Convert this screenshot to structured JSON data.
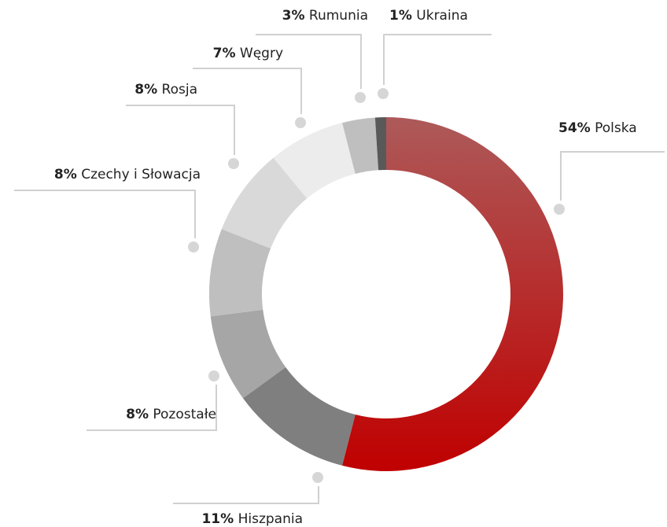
{
  "chart_data": {
    "type": "donut",
    "categories": [
      "Polska",
      "Hiszpania",
      "Pozostałe",
      "Czechy i Słowacja",
      "Rosja",
      "Węgry",
      "Rumunia",
      "Ukraina"
    ],
    "values": [
      54,
      11,
      8,
      8,
      8,
      7,
      3,
      1
    ],
    "value_labels": [
      "54%",
      "11%",
      "8%",
      "8%",
      "8%",
      "7%",
      "3%",
      "1%"
    ],
    "colors": [
      "#c00000",
      "#7f7f7f",
      "#a6a6a6",
      "#bfbfbf",
      "#d9d9d9",
      "#ececec",
      "#bfbfbf",
      "#595959"
    ]
  }
}
